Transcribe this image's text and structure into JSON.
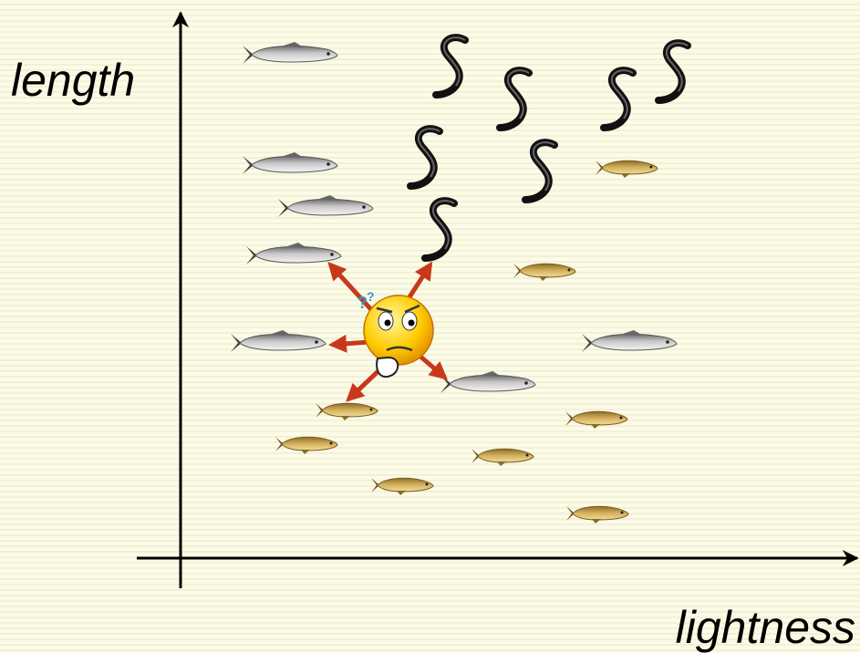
{
  "axes": {
    "y_label": "length",
    "x_label": "lightness"
  }
}
